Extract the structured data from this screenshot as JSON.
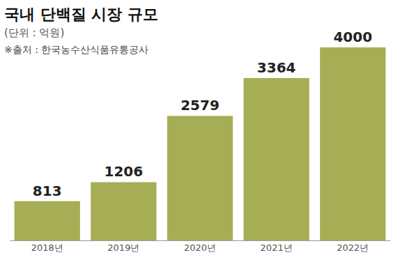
{
  "chart_data": {
    "type": "bar",
    "title": "국내 단백질 시장 규모",
    "subtitle": "(단위 : 억원)",
    "annotations": [
      "※출처 : 한국농수산식품유통공사"
    ],
    "categories": [
      "2018년",
      "2019년",
      "2020년",
      "2021년",
      "2022년"
    ],
    "values": [
      813,
      1206,
      2579,
      3364,
      4000
    ],
    "color": "#a6ae55",
    "ylim": [
      0,
      4000
    ],
    "grid": false,
    "data_labels": true,
    "tick_labels": "x"
  }
}
